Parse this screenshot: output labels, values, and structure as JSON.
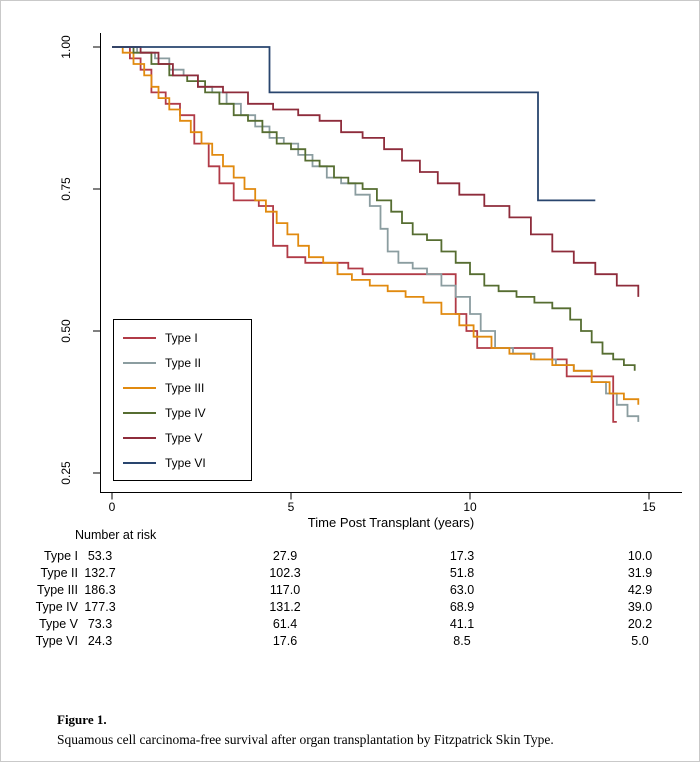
{
  "figure_caption": {
    "label": "Figure 1.",
    "text": "Squamous cell carcinoma-free survival after organ transplantation by Fitzpatrick Skin Type."
  },
  "chart_data": {
    "type": "line",
    "variant": "kaplan-meier-step",
    "title": "",
    "xlabel": "Time Post Transplant (years)",
    "ylabel": "",
    "xlim": [
      0,
      15.2
    ],
    "ylim": [
      0.22,
      1.02
    ],
    "grid": false,
    "x_ticks": [
      "0",
      "5",
      "10",
      "15"
    ],
    "x_tick_values": [
      0,
      5,
      10,
      15
    ],
    "y_ticks": [
      "1.00",
      "0.75",
      "0.50",
      "0.25"
    ],
    "y_tick_values": [
      1.0,
      0.75,
      0.5,
      0.25
    ],
    "legend_position": "inside-left-middle",
    "series": [
      {
        "name": "Type I",
        "color": "#b13b47",
        "points": [
          [
            0,
            1.0
          ],
          [
            0.5,
            0.98
          ],
          [
            0.8,
            0.96
          ],
          [
            1.1,
            0.92
          ],
          [
            1.5,
            0.9
          ],
          [
            1.9,
            0.88
          ],
          [
            2.3,
            0.83
          ],
          [
            2.7,
            0.79
          ],
          [
            3.0,
            0.76
          ],
          [
            3.4,
            0.73
          ],
          [
            4.1,
            0.72
          ],
          [
            4.5,
            0.65
          ],
          [
            4.9,
            0.63
          ],
          [
            5.4,
            0.62
          ],
          [
            6.6,
            0.61
          ],
          [
            7.0,
            0.6
          ],
          [
            9.6,
            0.53
          ],
          [
            9.9,
            0.5
          ],
          [
            10.2,
            0.47
          ],
          [
            12.3,
            0.45
          ],
          [
            12.7,
            0.42
          ],
          [
            14.0,
            0.34
          ],
          [
            14.1,
            0.34
          ]
        ]
      },
      {
        "name": "Type II",
        "color": "#8b9da0",
        "points": [
          [
            0,
            1.0
          ],
          [
            0.7,
            0.99
          ],
          [
            1.2,
            0.98
          ],
          [
            1.6,
            0.96
          ],
          [
            2.0,
            0.95
          ],
          [
            2.4,
            0.93
          ],
          [
            2.8,
            0.92
          ],
          [
            3.2,
            0.9
          ],
          [
            3.6,
            0.88
          ],
          [
            4.0,
            0.86
          ],
          [
            4.4,
            0.84
          ],
          [
            4.8,
            0.83
          ],
          [
            5.2,
            0.81
          ],
          [
            5.6,
            0.79
          ],
          [
            6.0,
            0.77
          ],
          [
            6.4,
            0.76
          ],
          [
            6.8,
            0.74
          ],
          [
            7.2,
            0.72
          ],
          [
            7.5,
            0.68
          ],
          [
            7.7,
            0.64
          ],
          [
            8.0,
            0.62
          ],
          [
            8.4,
            0.61
          ],
          [
            8.8,
            0.6
          ],
          [
            9.2,
            0.58
          ],
          [
            9.6,
            0.56
          ],
          [
            10.0,
            0.53
          ],
          [
            10.3,
            0.5
          ],
          [
            10.7,
            0.47
          ],
          [
            11.2,
            0.46
          ],
          [
            11.8,
            0.45
          ],
          [
            12.4,
            0.44
          ],
          [
            12.9,
            0.43
          ],
          [
            13.4,
            0.41
          ],
          [
            13.8,
            0.39
          ],
          [
            14.1,
            0.37
          ],
          [
            14.4,
            0.35
          ],
          [
            14.7,
            0.34
          ]
        ]
      },
      {
        "name": "Type III",
        "color": "#e18a0f",
        "points": [
          [
            0,
            1.0
          ],
          [
            0.3,
            0.99
          ],
          [
            0.6,
            0.97
          ],
          [
            0.9,
            0.95
          ],
          [
            1.1,
            0.93
          ],
          [
            1.3,
            0.91
          ],
          [
            1.6,
            0.89
          ],
          [
            1.9,
            0.87
          ],
          [
            2.2,
            0.85
          ],
          [
            2.5,
            0.83
          ],
          [
            2.8,
            0.81
          ],
          [
            3.1,
            0.79
          ],
          [
            3.4,
            0.77
          ],
          [
            3.7,
            0.75
          ],
          [
            4.0,
            0.73
          ],
          [
            4.3,
            0.71
          ],
          [
            4.6,
            0.69
          ],
          [
            4.9,
            0.67
          ],
          [
            5.2,
            0.65
          ],
          [
            5.5,
            0.63
          ],
          [
            5.9,
            0.62
          ],
          [
            6.3,
            0.6
          ],
          [
            6.7,
            0.59
          ],
          [
            7.2,
            0.58
          ],
          [
            7.7,
            0.57
          ],
          [
            8.2,
            0.56
          ],
          [
            8.7,
            0.55
          ],
          [
            9.2,
            0.53
          ],
          [
            9.7,
            0.51
          ],
          [
            10.1,
            0.49
          ],
          [
            10.6,
            0.47
          ],
          [
            11.1,
            0.46
          ],
          [
            11.7,
            0.45
          ],
          [
            12.3,
            0.44
          ],
          [
            12.9,
            0.43
          ],
          [
            13.4,
            0.41
          ],
          [
            13.9,
            0.39
          ],
          [
            14.3,
            0.38
          ],
          [
            14.7,
            0.37
          ]
        ]
      },
      {
        "name": "Type IV",
        "color": "#566d31",
        "points": [
          [
            0,
            1.0
          ],
          [
            0.6,
            0.99
          ],
          [
            1.1,
            0.97
          ],
          [
            1.6,
            0.95
          ],
          [
            2.1,
            0.94
          ],
          [
            2.6,
            0.92
          ],
          [
            3.0,
            0.9
          ],
          [
            3.4,
            0.88
          ],
          [
            3.8,
            0.87
          ],
          [
            4.2,
            0.85
          ],
          [
            4.6,
            0.83
          ],
          [
            5.0,
            0.82
          ],
          [
            5.4,
            0.8
          ],
          [
            5.8,
            0.79
          ],
          [
            6.2,
            0.77
          ],
          [
            6.6,
            0.76
          ],
          [
            7.0,
            0.75
          ],
          [
            7.4,
            0.73
          ],
          [
            7.8,
            0.71
          ],
          [
            8.1,
            0.69
          ],
          [
            8.4,
            0.67
          ],
          [
            8.8,
            0.66
          ],
          [
            9.2,
            0.64
          ],
          [
            9.6,
            0.62
          ],
          [
            10.0,
            0.6
          ],
          [
            10.4,
            0.58
          ],
          [
            10.8,
            0.57
          ],
          [
            11.3,
            0.56
          ],
          [
            11.8,
            0.55
          ],
          [
            12.3,
            0.54
          ],
          [
            12.8,
            0.52
          ],
          [
            13.1,
            0.5
          ],
          [
            13.4,
            0.48
          ],
          [
            13.7,
            0.46
          ],
          [
            14.0,
            0.45
          ],
          [
            14.3,
            0.44
          ],
          [
            14.6,
            0.43
          ]
        ]
      },
      {
        "name": "Type V",
        "color": "#8e2c3b",
        "points": [
          [
            0,
            1.0
          ],
          [
            0.8,
            0.99
          ],
          [
            1.3,
            0.97
          ],
          [
            1.7,
            0.95
          ],
          [
            2.4,
            0.93
          ],
          [
            3.1,
            0.92
          ],
          [
            3.8,
            0.9
          ],
          [
            4.5,
            0.89
          ],
          [
            5.2,
            0.88
          ],
          [
            5.8,
            0.87
          ],
          [
            6.4,
            0.85
          ],
          [
            7.0,
            0.84
          ],
          [
            7.6,
            0.82
          ],
          [
            8.1,
            0.8
          ],
          [
            8.6,
            0.78
          ],
          [
            9.1,
            0.76
          ],
          [
            9.7,
            0.74
          ],
          [
            10.4,
            0.72
          ],
          [
            11.1,
            0.7
          ],
          [
            11.7,
            0.67
          ],
          [
            12.3,
            0.64
          ],
          [
            12.9,
            0.62
          ],
          [
            13.5,
            0.6
          ],
          [
            14.1,
            0.58
          ],
          [
            14.7,
            0.56
          ]
        ]
      },
      {
        "name": "Type VI",
        "color": "#29456e",
        "points": [
          [
            0,
            1.0
          ],
          [
            4.4,
            0.92
          ],
          [
            11.9,
            0.73
          ],
          [
            13.5,
            0.73
          ]
        ]
      }
    ],
    "risk_table": {
      "title": "Number at risk",
      "times": [
        0,
        5,
        10,
        15
      ],
      "rows": [
        {
          "label": "Type I",
          "values": [
            "53.3",
            "27.9",
            "17.3",
            "10.0"
          ]
        },
        {
          "label": "Type II",
          "values": [
            "132.7",
            "102.3",
            "51.8",
            "31.9"
          ]
        },
        {
          "label": "Type III",
          "values": [
            "186.3",
            "117.0",
            "63.0",
            "42.9"
          ]
        },
        {
          "label": "Type IV",
          "values": [
            "177.3",
            "131.2",
            "68.9",
            "39.0"
          ]
        },
        {
          "label": "Type V",
          "values": [
            "73.3",
            "61.4",
            "41.1",
            "20.2"
          ]
        },
        {
          "label": "Type VI",
          "values": [
            "24.3",
            "17.6",
            "8.5",
            "5.0"
          ]
        }
      ]
    }
  }
}
